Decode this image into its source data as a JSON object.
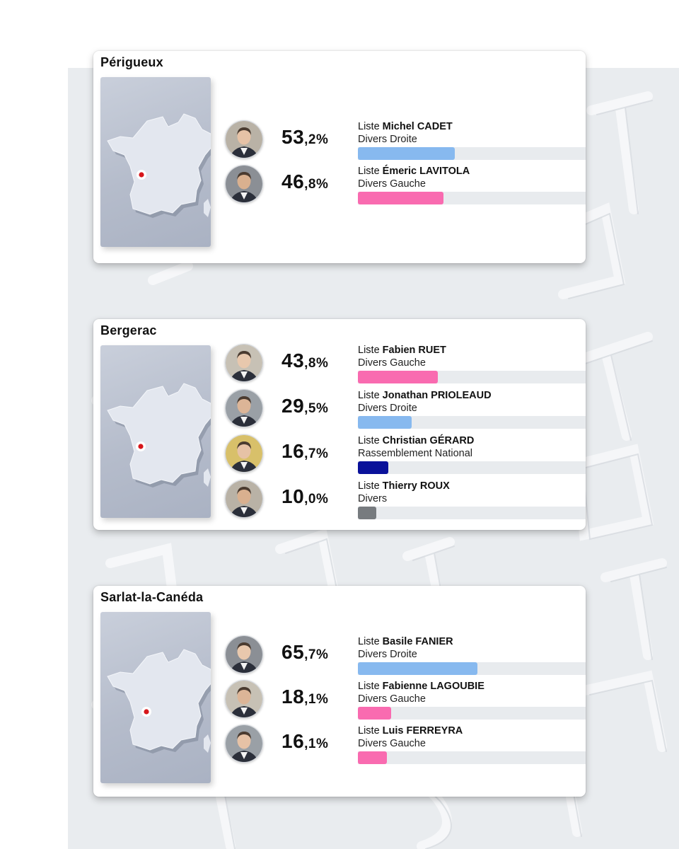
{
  "colors": {
    "divers_droite": "#87b9ef",
    "divers_gauche": "#f96bb0",
    "rassemblement_national": "#0a119a",
    "divers": "#777b7f",
    "marker": "#d7161b"
  },
  "cities": [
    {
      "name": "Périgueux",
      "candidates": [
        {
          "prefix": "Liste",
          "name": "Michel CADET",
          "party": "Divers Droite",
          "pct_int": "53",
          "pct_dec": ",2%",
          "share": 53.2,
          "color_key": "divers_droite",
          "avatar": "candidate-photo"
        },
        {
          "prefix": "Liste",
          "name": "Émeric LAVITOLA",
          "party": "Divers Gauche",
          "pct_int": "46",
          "pct_dec": ",8%",
          "share": 46.8,
          "color_key": "divers_gauche",
          "avatar": "candidate-photo"
        }
      ]
    },
    {
      "name": "Bergerac",
      "candidates": [
        {
          "prefix": "Liste",
          "name": "Fabien RUET",
          "party": "Divers Gauche",
          "pct_int": "43",
          "pct_dec": ",8%",
          "share": 43.8,
          "color_key": "divers_gauche",
          "avatar": "candidate-photo"
        },
        {
          "prefix": "Liste",
          "name": "Jonathan PRIOLEAUD",
          "party": "Divers Droite",
          "pct_int": "29",
          "pct_dec": ",5%",
          "share": 29.5,
          "color_key": "divers_droite",
          "avatar": "candidate-photo"
        },
        {
          "prefix": "Liste",
          "name": "Christian GÉRARD",
          "party": "Rassemblement National",
          "pct_int": "16",
          "pct_dec": ",7%",
          "share": 16.7,
          "color_key": "rassemblement_national",
          "avatar": "candidate-photo"
        },
        {
          "prefix": "Liste",
          "name": "Thierry ROUX",
          "party": "Divers",
          "pct_int": "10",
          "pct_dec": ",0%",
          "share": 10.0,
          "color_key": "divers",
          "avatar": "candidate-photo"
        }
      ]
    },
    {
      "name": "Sarlat-la-Canéda",
      "candidates": [
        {
          "prefix": "Liste",
          "name": "Basile FANIER",
          "party": "Divers Droite",
          "pct_int": "65",
          "pct_dec": ",7%",
          "share": 65.7,
          "color_key": "divers_droite",
          "avatar": "candidate-photo"
        },
        {
          "prefix": "Liste",
          "name": "Fabienne LAGOUBIE",
          "party": "Divers Gauche",
          "pct_int": "18",
          "pct_dec": ",1%",
          "share": 18.1,
          "color_key": "divers_gauche",
          "avatar": "candidate-photo"
        },
        {
          "prefix": "Liste",
          "name": "Luis FERREYRA",
          "party": "Divers Gauche",
          "pct_int": "16",
          "pct_dec": ",1%",
          "share": 16.1,
          "color_key": "divers_gauche",
          "avatar": "candidate-photo"
        }
      ]
    }
  ]
}
